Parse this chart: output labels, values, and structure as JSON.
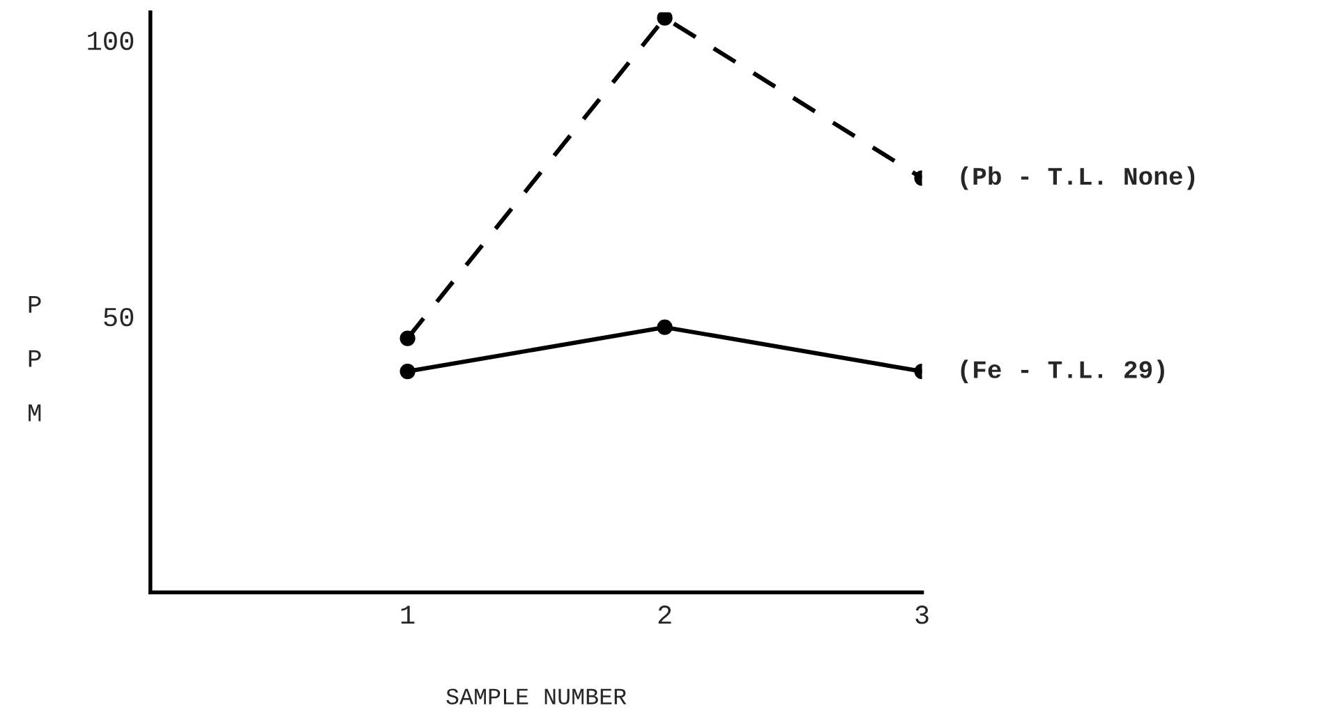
{
  "chart_data": {
    "type": "line",
    "xlabel": "SAMPLE NUMBER",
    "ylabel": "PPM",
    "categories": [
      "1",
      "2",
      "3"
    ],
    "series": [
      {
        "name": "(Pb - T.L. None)",
        "color": "#000000",
        "values": [
          46,
          104,
          75
        ],
        "line_style": "dashed"
      },
      {
        "name": "(Fe - T.L. 29)",
        "color": "#000000",
        "values": [
          40,
          48,
          40
        ],
        "line_style": "solid"
      }
    ],
    "ylim": [
      0,
      105
    ],
    "yticks": [
      50,
      100
    ],
    "marker": "circle",
    "grid": false,
    "legend": false
  }
}
